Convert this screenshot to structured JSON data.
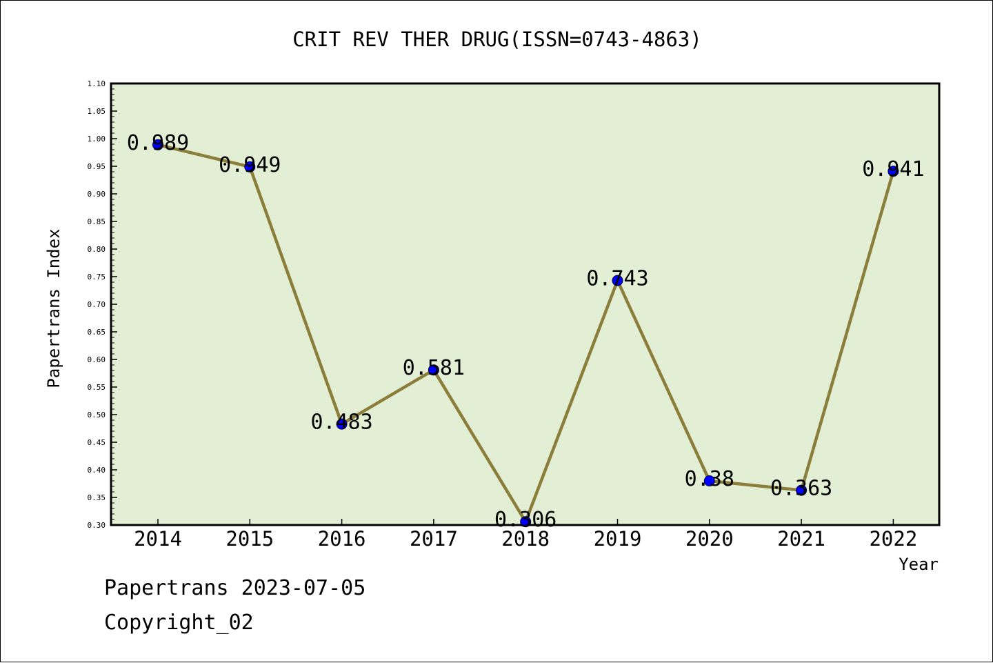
{
  "chart_data": {
    "type": "line",
    "title": "CRIT REV THER DRUG(ISSN=0743-4863)",
    "xlabel": "Year",
    "ylabel": "Papertrans Index",
    "categories": [
      "2014",
      "2015",
      "2016",
      "2017",
      "2018",
      "2019",
      "2020",
      "2021",
      "2022"
    ],
    "values": [
      0.989,
      0.949,
      0.483,
      0.581,
      0.306,
      0.743,
      0.38,
      0.363,
      0.941
    ],
    "data_labels": [
      "0.989",
      "0.949",
      "0.483",
      "0.581",
      "0.306",
      "0.743",
      "0.38",
      "0.363",
      "0.941"
    ],
    "ylim": [
      0.3,
      1.1
    ],
    "yticks": [
      "0.30",
      "0.35",
      "0.40",
      "0.45",
      "0.50",
      "0.55",
      "0.60",
      "0.65",
      "0.70",
      "0.75",
      "0.80",
      "0.85",
      "0.90",
      "0.95",
      "1.00",
      "1.05",
      "1.10"
    ],
    "grid": false,
    "legend": "none",
    "colors": {
      "plot_background": "#e2efd5",
      "line": "#8b7d3a",
      "marker": "#0000ff"
    }
  },
  "footer": {
    "date_text": "Papertrans 2023-07-05",
    "copyright_text": "Copyright_02"
  }
}
